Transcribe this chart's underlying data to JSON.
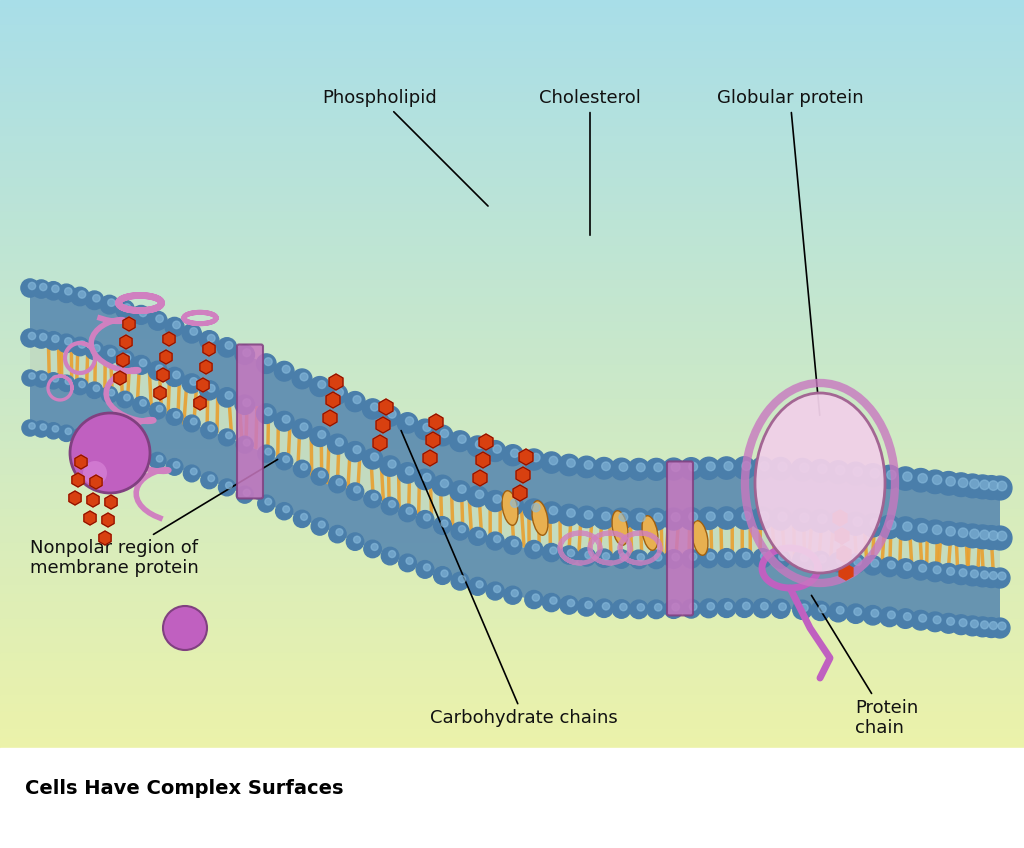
{
  "title": "Cells Have Complex Surfaces",
  "background_top": "#a8dde8",
  "background_bottom": "#f5f5a0",
  "membrane_blue": "#5b8db8",
  "membrane_dark": "#3a6080",
  "lipid_tail_color": "#f0a030",
  "carb_chain_color": "#d84010",
  "protein_color": "#c878c0",
  "cholesterol_color": "#e8a850",
  "globular_protein_color": "#e8c8e0",
  "labels": {
    "carbohydrate_chains": "Carbohydrate chains",
    "protein_chain": "Protein\nchain",
    "nonpolar_region": "Nonpolar region of\nmembrane protein",
    "phospholipid": "Phospholipid",
    "cholesterol": "Cholesterol",
    "globular_protein": "Globular protein"
  },
  "figsize": [
    10.24,
    8.48
  ],
  "dpi": 100
}
